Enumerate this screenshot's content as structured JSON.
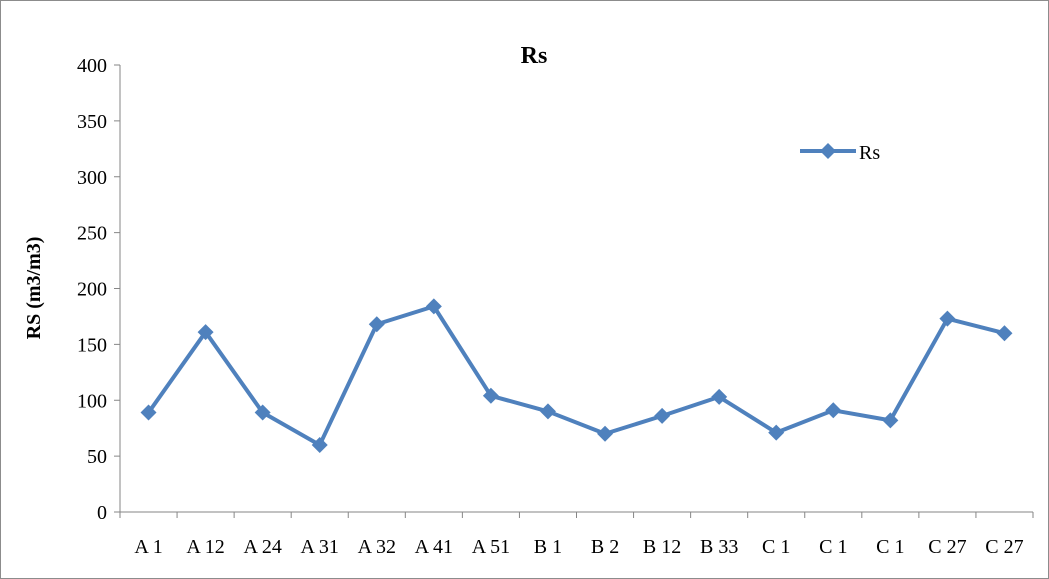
{
  "chart_data": {
    "type": "line",
    "title": "Rs",
    "xlabel": "",
    "ylabel": "RS (m3/m3)",
    "ylim": [
      0,
      400
    ],
    "yticks": [
      0,
      50,
      100,
      150,
      200,
      250,
      300,
      350,
      400
    ],
    "categories": [
      "A 1",
      "A 12",
      "A 24",
      "A 31",
      "A 32",
      "A 41",
      "A 51",
      "B 1",
      "B 2",
      "B 12",
      "B 33",
      "C 1",
      "C 1",
      "C 1",
      "C 27",
      "C 27"
    ],
    "series": [
      {
        "name": "Rs",
        "color": "#4F81BD",
        "marker": "diamond",
        "values": [
          89,
          161,
          89,
          60,
          168,
          184,
          104,
          90,
          70,
          86,
          103,
          71,
          91,
          82,
          173,
          160
        ]
      }
    ],
    "grid": false,
    "legend": "right"
  }
}
